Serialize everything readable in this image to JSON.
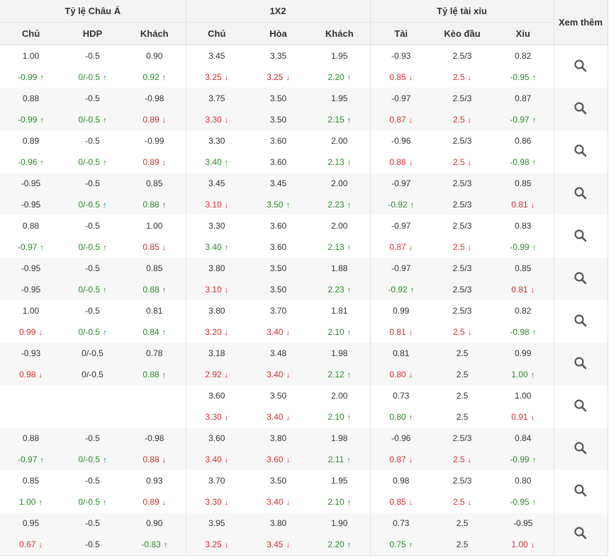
{
  "headers": {
    "group_asian": "Tỷ lệ Châu Á",
    "group_1x2": "1X2",
    "group_ou": "Tỷ lệ tài xỉu",
    "more": "Xem thêm",
    "sub": [
      "Chủ",
      "HDP",
      "Khách",
      "Chủ",
      "Hòa",
      "Khách",
      "Tài",
      "Kèo đầu",
      "Xỉu"
    ]
  },
  "icons": {
    "view": "search-icon",
    "up": "arrow-up-icon",
    "down": "arrow-down-icon"
  },
  "colors": {
    "up": "#2a8a2a",
    "down": "#d03030"
  },
  "rows": [
    [
      [
        "1.00",
        "-0.99",
        "u"
      ],
      [
        "-0.5",
        "0/-0.5",
        "u"
      ],
      [
        "0.90",
        "0.92",
        "u"
      ],
      [
        "3.45",
        "3.25",
        "d"
      ],
      [
        "3.35",
        "3.25",
        "d"
      ],
      [
        "1.95",
        "2.20",
        "u"
      ],
      [
        "-0.93",
        "0.85",
        "d"
      ],
      [
        "2.5/3",
        "2.5",
        "d"
      ],
      [
        "0.82",
        "-0.95",
        "u"
      ]
    ],
    [
      [
        "0.88",
        "-0.99",
        "u"
      ],
      [
        "-0.5",
        "0/-0.5",
        "u"
      ],
      [
        "-0.98",
        "0.89",
        "d"
      ],
      [
        "3.75",
        "3.30",
        "d"
      ],
      [
        "3.50",
        "3.50",
        "s"
      ],
      [
        "1.95",
        "2.15",
        "u"
      ],
      [
        "-0.97",
        "0.87",
        "d"
      ],
      [
        "2.5/3",
        "2.5",
        "d"
      ],
      [
        "0.87",
        "-0.97",
        "u"
      ]
    ],
    [
      [
        "0.89",
        "-0.96",
        "u"
      ],
      [
        "-0.5",
        "0/-0.5",
        "u"
      ],
      [
        "-0.99",
        "0.89",
        "d"
      ],
      [
        "3.30",
        "3.40",
        "u"
      ],
      [
        "3.60",
        "3.60",
        "s"
      ],
      [
        "2.00",
        "2.13",
        "u"
      ],
      [
        "-0.96",
        "0.88",
        "d"
      ],
      [
        "2.5/3",
        "2.5",
        "d"
      ],
      [
        "0.86",
        "-0.98",
        "u"
      ]
    ],
    [
      [
        "-0.95",
        "-0.95",
        "s"
      ],
      [
        "-0.5",
        "0/-0.5",
        "u"
      ],
      [
        "0.85",
        "0.88",
        "u"
      ],
      [
        "3.45",
        "3.10",
        "d"
      ],
      [
        "3.45",
        "3.50",
        "u"
      ],
      [
        "2.00",
        "2.23",
        "u"
      ],
      [
        "-0.97",
        "-0.92",
        "u"
      ],
      [
        "2.5/3",
        "2.5/3",
        "s"
      ],
      [
        "0.85",
        "0.81",
        "d"
      ]
    ],
    [
      [
        "0.88",
        "-0.97",
        "u"
      ],
      [
        "-0.5",
        "0/-0.5",
        "u"
      ],
      [
        "1.00",
        "0.85",
        "d"
      ],
      [
        "3.30",
        "3.40",
        "u"
      ],
      [
        "3.60",
        "3.60",
        "s"
      ],
      [
        "2.00",
        "2.13",
        "u"
      ],
      [
        "-0.97",
        "0.87",
        "d"
      ],
      [
        "2.5/3",
        "2.5",
        "d"
      ],
      [
        "0.83",
        "-0.99",
        "u"
      ]
    ],
    [
      [
        "-0.95",
        "-0.95",
        "s"
      ],
      [
        "-0.5",
        "0/-0.5",
        "u"
      ],
      [
        "0.85",
        "0.88",
        "u"
      ],
      [
        "3.80",
        "3.10",
        "d"
      ],
      [
        "3.50",
        "3.50",
        "s"
      ],
      [
        "1.88",
        "2.23",
        "u"
      ],
      [
        "-0.97",
        "-0.92",
        "u"
      ],
      [
        "2.5/3",
        "2.5/3",
        "s"
      ],
      [
        "0.85",
        "0.81",
        "d"
      ]
    ],
    [
      [
        "1.00",
        "0.99",
        "d"
      ],
      [
        "-0.5",
        "0/-0.5",
        "u"
      ],
      [
        "0.81",
        "0.84",
        "u"
      ],
      [
        "3.80",
        "3.20",
        "d"
      ],
      [
        "3.70",
        "3.40",
        "d"
      ],
      [
        "1.81",
        "2.10",
        "u"
      ],
      [
        "0.99",
        "0.81",
        "d"
      ],
      [
        "2.5/3",
        "2.5",
        "d"
      ],
      [
        "0.82",
        "-0.98",
        "u"
      ]
    ],
    [
      [
        "-0.93",
        "0.98",
        "d"
      ],
      [
        "0/-0.5",
        "0/-0.5",
        "s"
      ],
      [
        "0.78",
        "0.88",
        "u"
      ],
      [
        "3.18",
        "2.92",
        "d"
      ],
      [
        "3.48",
        "3.40",
        "d"
      ],
      [
        "1.98",
        "2.12",
        "u"
      ],
      [
        "0.81",
        "0.80",
        "d"
      ],
      [
        "2.5",
        "2.5",
        "s"
      ],
      [
        "0.99",
        "1.00",
        "u"
      ]
    ],
    [
      [
        "",
        "",
        "s"
      ],
      [
        "",
        "",
        "s"
      ],
      [
        "",
        "",
        "s"
      ],
      [
        "3.60",
        "3.30",
        "d"
      ],
      [
        "3.50",
        "3.40",
        "d"
      ],
      [
        "2.00",
        "2.10",
        "u"
      ],
      [
        "0.73",
        "0.80",
        "u"
      ],
      [
        "2.5",
        "2.5",
        "s"
      ],
      [
        "1.00",
        "0.91",
        "d"
      ]
    ],
    [
      [
        "0.88",
        "-0.97",
        "u"
      ],
      [
        "-0.5",
        "0/-0.5",
        "u"
      ],
      [
        "-0.98",
        "0.88",
        "d"
      ],
      [
        "3.60",
        "3.40",
        "d"
      ],
      [
        "3.80",
        "3.60",
        "d"
      ],
      [
        "1.98",
        "2.11",
        "u"
      ],
      [
        "-0.96",
        "0.87",
        "d"
      ],
      [
        "2.5/3",
        "2.5",
        "d"
      ],
      [
        "0.84",
        "-0.99",
        "u"
      ]
    ],
    [
      [
        "0.85",
        "1.00",
        "u"
      ],
      [
        "-0.5",
        "0/-0.5",
        "u"
      ],
      [
        "0.93",
        "0.89",
        "d"
      ],
      [
        "3.70",
        "3.30",
        "d"
      ],
      [
        "3.50",
        "3.40",
        "d"
      ],
      [
        "1.95",
        "2.10",
        "u"
      ],
      [
        "0.98",
        "0.85",
        "d"
      ],
      [
        "2.5/3",
        "2.5",
        "d"
      ],
      [
        "0.80",
        "-0.95",
        "u"
      ]
    ],
    [
      [
        "0.95",
        "0.67",
        "d"
      ],
      [
        "-0.5",
        "-0.5",
        "s"
      ],
      [
        "0.90",
        "-0.83",
        "u"
      ],
      [
        "3.95",
        "3.25",
        "d"
      ],
      [
        "3.80",
        "3.45",
        "d"
      ],
      [
        "1.90",
        "2.20",
        "u"
      ],
      [
        "0.73",
        "0.75",
        "u"
      ],
      [
        "2.5",
        "2.5",
        "s"
      ],
      [
        "-0.95",
        "1.00",
        "d"
      ]
    ]
  ]
}
